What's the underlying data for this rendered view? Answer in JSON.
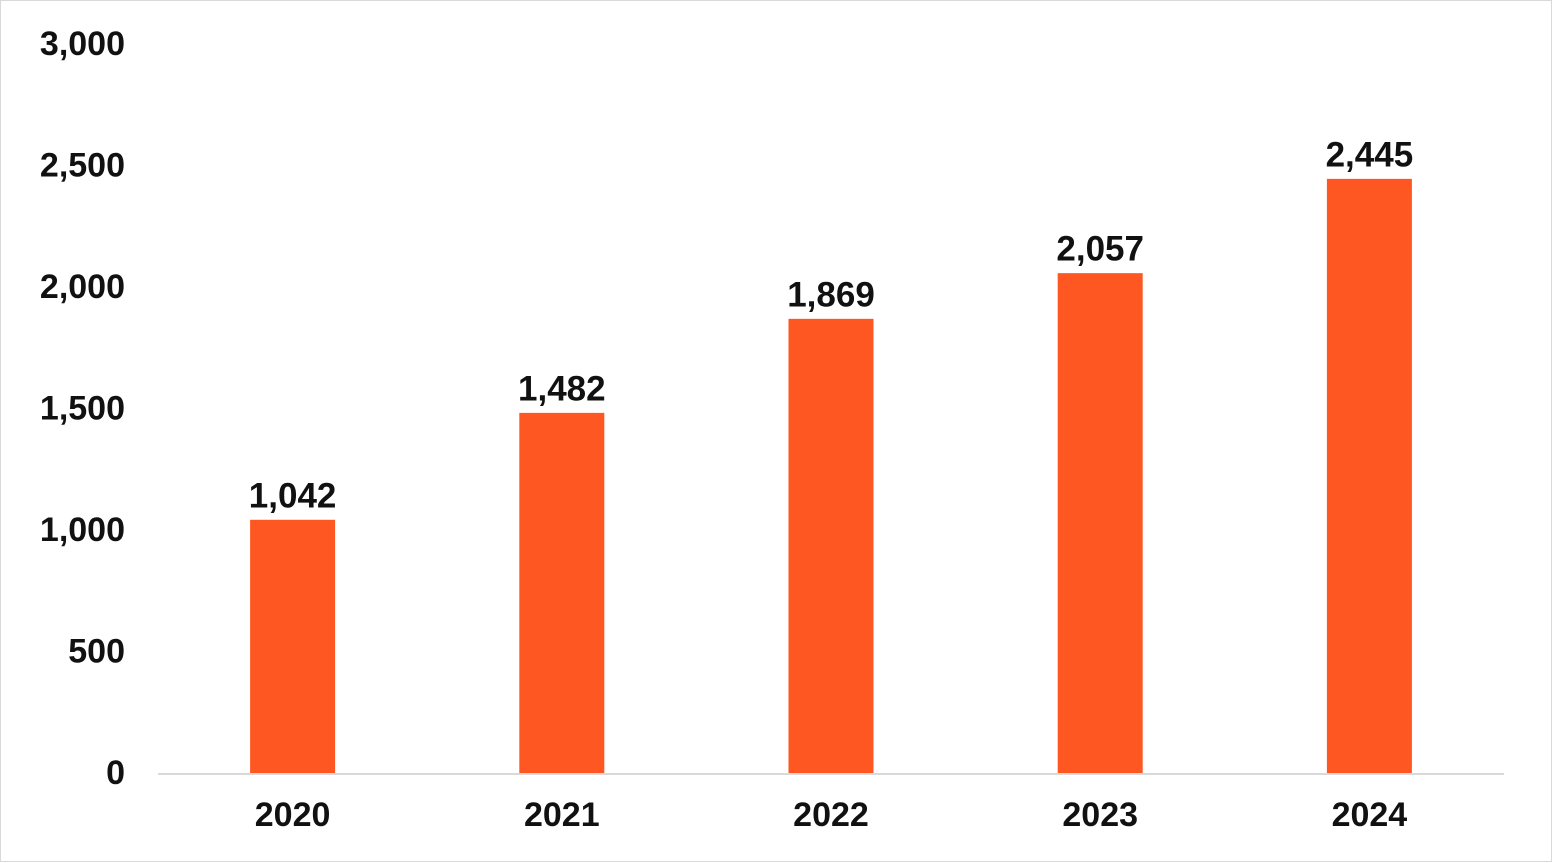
{
  "chart_data": {
    "type": "bar",
    "title": "",
    "xlabel": "",
    "ylabel": "",
    "categories": [
      "2020",
      "2021",
      "2022",
      "2023",
      "2024"
    ],
    "values": [
      1042,
      1482,
      1869,
      2057,
      2445
    ],
    "data_labels": [
      "1,042",
      "1,482",
      "1,869",
      "2,057",
      "2,445"
    ],
    "ylim": [
      0,
      3000
    ],
    "y_ticks": [
      0,
      500,
      1000,
      1500,
      2000,
      2500,
      3000
    ],
    "y_tick_labels": [
      "0",
      "500",
      "1,000",
      "1,500",
      "2,000",
      "2,500",
      "3,000"
    ],
    "grid": false,
    "legend": "none",
    "bar_color": "#ff5722",
    "axis_color": "#d9d9d9"
  }
}
